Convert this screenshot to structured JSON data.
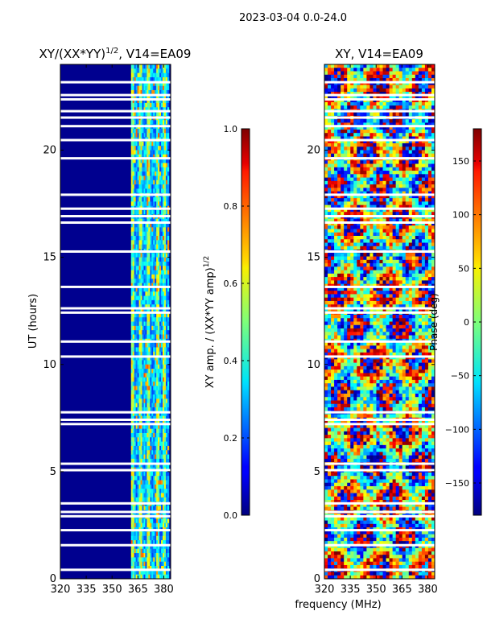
{
  "suptitle": "2023-03-04 0.0-24.0",
  "xlabel": "frequency (MHz)",
  "chart_data": [
    {
      "type": "heatmap",
      "title_main": "XY/(XX*YY)",
      "title_sup": "1/2",
      "title_tail": ", V14=EA09",
      "ylabel": "UT (hours)",
      "xlim": [
        320,
        384
      ],
      "ylim": [
        0,
        24
      ],
      "xticks": [
        320,
        335,
        350,
        365,
        380
      ],
      "yticks": [
        0,
        5,
        10,
        15,
        20
      ],
      "colorbar": {
        "label_main": "XY amp. / (XX*YY amp)",
        "label_sup": "1/2",
        "range": [
          0.0,
          1.0
        ],
        "ticks": [
          "0.0",
          "0.2",
          "0.4",
          "0.6",
          "0.8",
          "1.0"
        ],
        "tick_values": [
          0.0,
          0.2,
          0.4,
          0.6,
          0.8,
          1.0
        ]
      },
      "colormap": "jet",
      "background_color": "#00008f",
      "high_amplitude_band_mhz": [
        361,
        383
      ]
    },
    {
      "type": "heatmap",
      "title": "XY, V14=EA09",
      "xlim": [
        320,
        384
      ],
      "ylim": [
        0,
        24
      ],
      "xticks": [
        320,
        335,
        350,
        365,
        380
      ],
      "yticks": [
        0,
        5,
        10,
        15,
        20
      ],
      "colorbar": {
        "label": "Phase (deg)",
        "range": [
          -180,
          180
        ],
        "ticks": [
          "150",
          "100",
          "50",
          "0",
          "−50",
          "−100",
          "−150"
        ],
        "tick_values": [
          150,
          100,
          50,
          0,
          -50,
          -100,
          -150
        ]
      },
      "colormap": "jet"
    }
  ],
  "flagged_hours": [
    0.4,
    1.55,
    2.25,
    2.9,
    3.1,
    3.5,
    5.05,
    5.35,
    7.2,
    7.4,
    7.75,
    10.35,
    11.05,
    12.4,
    12.6,
    13.6,
    15.25,
    16.6,
    16.9,
    17.25,
    17.9,
    19.6,
    20.45,
    21.1,
    21.5,
    21.8,
    22.35,
    22.55,
    23.15
  ]
}
